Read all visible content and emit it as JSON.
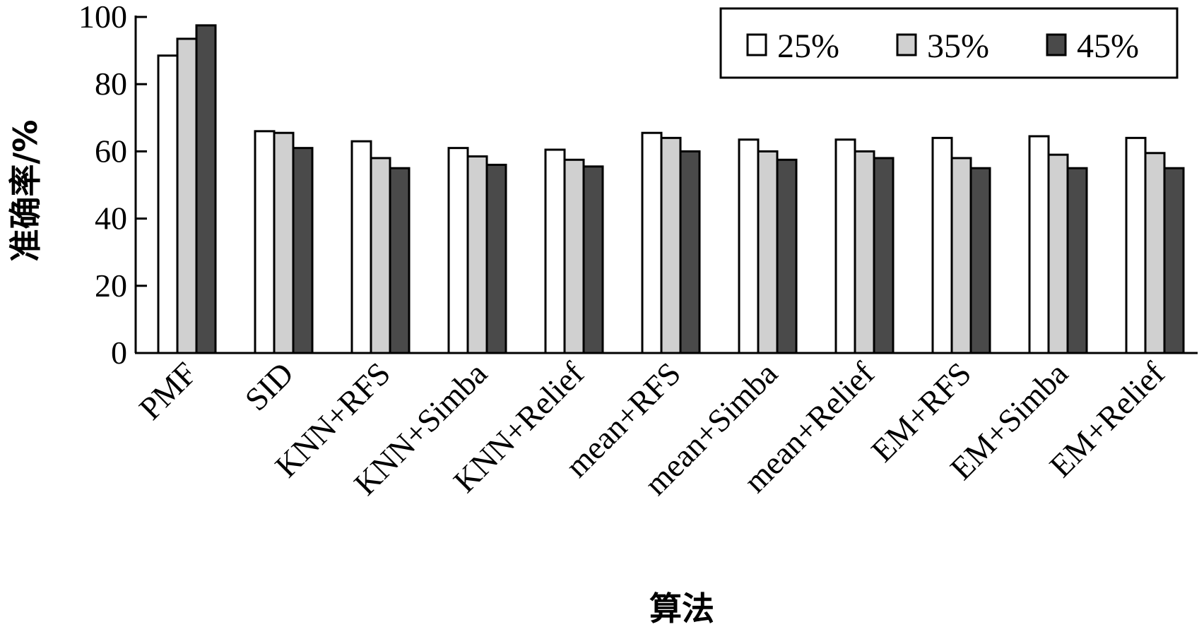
{
  "chart_data": {
    "type": "bar",
    "xlabel": "算法",
    "ylabel": "准确率/%",
    "ylim": [
      0,
      100
    ],
    "yticks": [
      0,
      20,
      40,
      60,
      80,
      100
    ],
    "grid": false,
    "legend_position": "top-right",
    "categories": [
      "PMF",
      "SID",
      "KNN+RFS",
      "KNN+Simba",
      "KNN+Relief",
      "mean+RFS",
      "mean+Simba",
      "mean+Relief",
      "EM+RFS",
      "EM+Simba",
      "EM+Relief"
    ],
    "series": [
      {
        "name": "25%",
        "color": "#ffffff",
        "values": [
          88.5,
          66,
          63,
          61,
          60.5,
          65.5,
          63.5,
          63.5,
          64,
          64.5,
          64
        ]
      },
      {
        "name": "35%",
        "color": "#d0d0d0",
        "values": [
          93.5,
          65.5,
          58,
          58.5,
          57.5,
          64,
          60,
          60,
          58,
          59,
          59.5
        ]
      },
      {
        "name": "45%",
        "color": "#4a4a4a",
        "values": [
          97.5,
          61,
          55,
          56,
          55.5,
          60,
          57.5,
          58,
          55,
          55,
          55
        ]
      }
    ]
  }
}
